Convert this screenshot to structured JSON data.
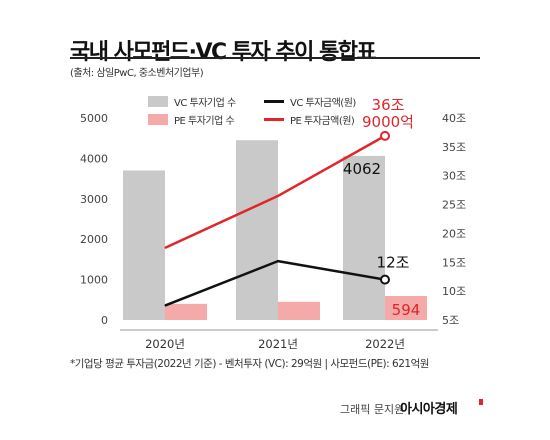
{
  "title": "국내 사모펀드·VC 투자 추이 통합표",
  "subtitle": "(출처: 삼일PwC, 중소벤처기업부)",
  "footnote": "*기업당 평균 투자금(2022년 기준) - 벤처투자 (VC): 29억원 | 사모펀드(PE): 621억원",
  "credit": {
    "label": "그래픽 문지원",
    "brand": "아시아경제"
  },
  "colors": {
    "vc_bar": "#c9c9c9",
    "pe_bar": "#f4aaa8",
    "vc_line": "#111111",
    "pe_line": "#e0252b"
  },
  "chart_data": {
    "type": "bar",
    "categories": [
      "2020년",
      "2021년",
      "2022년"
    ],
    "left_axis": {
      "ylim": [
        0,
        5000
      ],
      "ticks": [
        "0",
        "1000",
        "2000",
        "3000",
        "4000",
        "5000"
      ]
    },
    "right_axis": {
      "ylim": [
        5,
        40
      ],
      "unit": "조",
      "ticks": [
        "5조",
        "10조",
        "15조",
        "20조",
        "25조",
        "30조",
        "35조",
        "40조"
      ]
    },
    "series": [
      {
        "name": "VC 투자기업 수",
        "kind": "bar",
        "axis": "left",
        "values": [
          3700,
          4450,
          4062
        ]
      },
      {
        "name": "PE 투자기업 수",
        "kind": "bar",
        "axis": "left",
        "values": [
          400,
          450,
          594
        ]
      },
      {
        "name": "VC 투자금액(원)",
        "kind": "line",
        "axis": "right",
        "values": [
          7.5,
          15.2,
          12
        ]
      },
      {
        "name": "PE 투자금액(원)",
        "kind": "line",
        "axis": "right",
        "values": [
          17.5,
          26.5,
          36.9
        ]
      }
    ],
    "annotations": {
      "vc_bar_2022": "4062",
      "pe_bar_2022": "594",
      "vc_line_2022": "12조",
      "pe_line_2022_line1": "36조",
      "pe_line_2022_line2": "9000억"
    },
    "grid": false,
    "legend": "top"
  }
}
